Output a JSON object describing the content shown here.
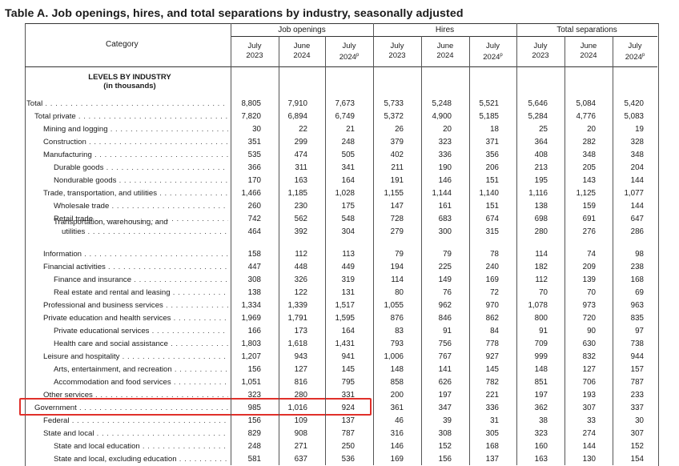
{
  "title": "Table A. Job openings, hires, and total separations by industry, seasonally adjusted",
  "category_header": "Category",
  "groups": [
    "Job openings",
    "Hires",
    "Total separations"
  ],
  "columns": [
    {
      "line1": "July",
      "line2": "2023",
      "sup": ""
    },
    {
      "line1": "June",
      "line2": "2024",
      "sup": ""
    },
    {
      "line1": "July",
      "line2": "2024",
      "sup": "p"
    }
  ],
  "section_title": "LEVELS BY INDUSTRY",
  "section_subtitle": "(in thousands)",
  "rows": [
    {
      "label": "Total",
      "indent": 0,
      "values": [
        "8,805",
        "7,910",
        "7,673",
        "5,733",
        "5,248",
        "5,521",
        "5,646",
        "5,084",
        "5,420"
      ]
    },
    {
      "label": "Total private",
      "indent": 1,
      "values": [
        "7,820",
        "6,894",
        "6,749",
        "5,372",
        "4,900",
        "5,185",
        "5,284",
        "4,776",
        "5,083"
      ]
    },
    {
      "label": "Mining and logging",
      "indent": 2,
      "values": [
        "30",
        "22",
        "21",
        "26",
        "20",
        "18",
        "25",
        "20",
        "19"
      ]
    },
    {
      "label": "Construction",
      "indent": 2,
      "values": [
        "351",
        "299",
        "248",
        "379",
        "323",
        "371",
        "364",
        "282",
        "328"
      ]
    },
    {
      "label": "Manufacturing",
      "indent": 2,
      "values": [
        "535",
        "474",
        "505",
        "402",
        "336",
        "356",
        "408",
        "348",
        "348"
      ]
    },
    {
      "label": "Durable goods",
      "indent": 3,
      "values": [
        "366",
        "311",
        "341",
        "211",
        "190",
        "206",
        "213",
        "205",
        "204"
      ]
    },
    {
      "label": "Nondurable goods",
      "indent": 3,
      "values": [
        "170",
        "163",
        "164",
        "191",
        "146",
        "151",
        "195",
        "143",
        "144"
      ]
    },
    {
      "label": "Trade, transportation, and utilities",
      "indent": 2,
      "values": [
        "1,466",
        "1,185",
        "1,028",
        "1,155",
        "1,144",
        "1,140",
        "1,116",
        "1,125",
        "1,077"
      ]
    },
    {
      "label": "Wholesale trade",
      "indent": 3,
      "values": [
        "260",
        "230",
        "175",
        "147",
        "161",
        "151",
        "138",
        "159",
        "144"
      ]
    },
    {
      "label": "Retail trade",
      "indent": 3,
      "values": [
        "742",
        "562",
        "548",
        "728",
        "683",
        "674",
        "698",
        "691",
        "647"
      ]
    },
    {
      "label": "Transportation, warehousing, and",
      "label2": "utilities",
      "indent": 3,
      "values": [
        "464",
        "392",
        "304",
        "279",
        "300",
        "315",
        "280",
        "276",
        "286"
      ]
    },
    {
      "label": "Information",
      "indent": 2,
      "values": [
        "158",
        "112",
        "113",
        "79",
        "79",
        "78",
        "114",
        "74",
        "98"
      ]
    },
    {
      "label": "Financial activities",
      "indent": 2,
      "values": [
        "447",
        "448",
        "449",
        "194",
        "225",
        "240",
        "182",
        "209",
        "238"
      ]
    },
    {
      "label": "Finance and insurance",
      "indent": 3,
      "values": [
        "308",
        "326",
        "319",
        "114",
        "149",
        "169",
        "112",
        "139",
        "168"
      ]
    },
    {
      "label": "Real estate and rental and leasing",
      "indent": 3,
      "values": [
        "138",
        "122",
        "131",
        "80",
        "76",
        "72",
        "70",
        "70",
        "69"
      ]
    },
    {
      "label": "Professional and business services",
      "indent": 2,
      "values": [
        "1,334",
        "1,339",
        "1,517",
        "1,055",
        "962",
        "970",
        "1,078",
        "973",
        "963"
      ]
    },
    {
      "label": "Private education and health services",
      "indent": 2,
      "values": [
        "1,969",
        "1,791",
        "1,595",
        "876",
        "846",
        "862",
        "800",
        "720",
        "835"
      ]
    },
    {
      "label": "Private educational services",
      "indent": 3,
      "values": [
        "166",
        "173",
        "164",
        "83",
        "91",
        "84",
        "91",
        "90",
        "97"
      ]
    },
    {
      "label": "Health care and social assistance",
      "indent": 3,
      "values": [
        "1,803",
        "1,618",
        "1,431",
        "793",
        "756",
        "778",
        "709",
        "630",
        "738"
      ]
    },
    {
      "label": "Leisure and hospitality",
      "indent": 2,
      "values": [
        "1,207",
        "943",
        "941",
        "1,006",
        "767",
        "927",
        "999",
        "832",
        "944"
      ]
    },
    {
      "label": "Arts, entertainment, and recreation",
      "indent": 3,
      "values": [
        "156",
        "127",
        "145",
        "148",
        "141",
        "145",
        "148",
        "127",
        "157"
      ]
    },
    {
      "label": "Accommodation and food services",
      "indent": 3,
      "values": [
        "1,051",
        "816",
        "795",
        "858",
        "626",
        "782",
        "851",
        "706",
        "787"
      ]
    },
    {
      "label": "Other services",
      "indent": 2,
      "values": [
        "323",
        "280",
        "331",
        "200",
        "197",
        "221",
        "197",
        "193",
        "233"
      ]
    },
    {
      "label": "Government",
      "indent": 1,
      "values": [
        "985",
        "1,016",
        "924",
        "361",
        "347",
        "336",
        "362",
        "307",
        "337"
      ]
    },
    {
      "label": "Federal",
      "indent": 2,
      "values": [
        "156",
        "109",
        "137",
        "46",
        "39",
        "31",
        "38",
        "33",
        "30"
      ]
    },
    {
      "label": "State and local",
      "indent": 2,
      "values": [
        "829",
        "908",
        "787",
        "316",
        "308",
        "305",
        "323",
        "274",
        "307"
      ]
    },
    {
      "label": "State and local education",
      "indent": 3,
      "values": [
        "248",
        "271",
        "250",
        "146",
        "152",
        "168",
        "160",
        "144",
        "152"
      ]
    },
    {
      "label": "State and local, excluding education",
      "indent": 3,
      "values": [
        "581",
        "637",
        "536",
        "169",
        "156",
        "137",
        "163",
        "130",
        "154"
      ]
    }
  ],
  "highlight_row": "Government",
  "highlight_color": "#e0302a"
}
